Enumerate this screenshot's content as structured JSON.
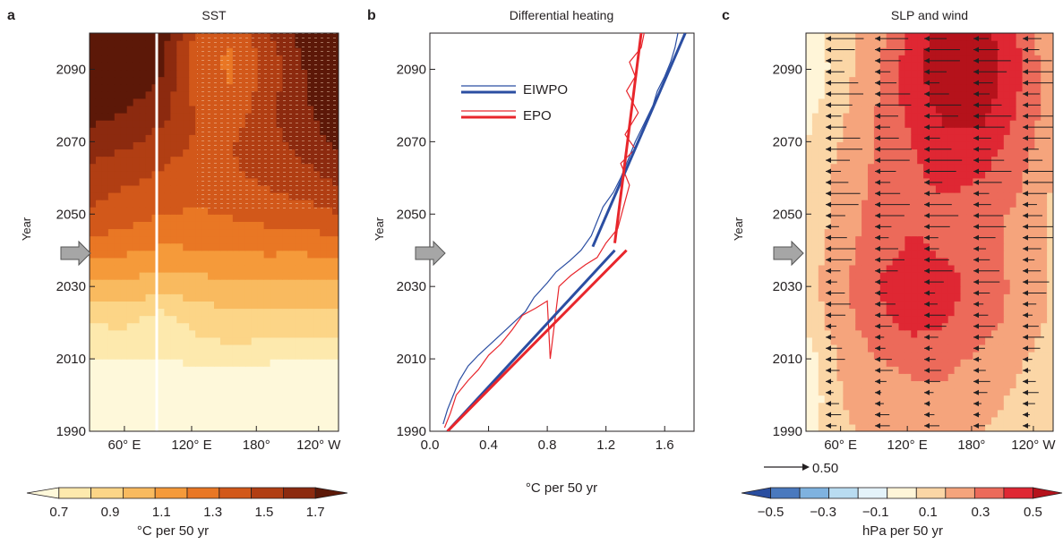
{
  "chart_data": [
    {
      "panel": "a",
      "type": "heatmap",
      "title": "SST",
      "ylabel": "Year",
      "y_ticks": [
        "1990",
        "2010",
        "2030",
        "2050",
        "2070",
        "2090"
      ],
      "ylim": [
        1990,
        2100
      ],
      "x_ticks": [
        "60° E",
        "120° E",
        "180°",
        "120° W"
      ],
      "colorbar": {
        "labels": [
          "0.7",
          "0.9",
          "1.1",
          "1.3",
          "1.5",
          "1.7"
        ],
        "label": "°C per 50 yr",
        "colors": [
          "#fef8da",
          "#fde9ad",
          "#fcd587",
          "#f9ba5f",
          "#f59a3a",
          "#e97724",
          "#d2581a",
          "#b13e13",
          "#8c2a0f",
          "#5c1808"
        ]
      },
      "rows": [
        {
          "year": 1990,
          "values": [
            0.7,
            0.7,
            0.7,
            0.7,
            0.7,
            0.7,
            0.7,
            0.7
          ]
        },
        {
          "year": 2005,
          "values": [
            0.72,
            0.72,
            0.74,
            0.74,
            0.72,
            0.72,
            0.72,
            0.72
          ]
        },
        {
          "year": 2012,
          "values": [
            0.82,
            0.85,
            0.82,
            0.86,
            0.88,
            0.86,
            0.85,
            0.86
          ]
        },
        {
          "year": 2020,
          "values": [
            0.9,
            0.92,
            0.83,
            0.93,
            0.95,
            0.95,
            0.95,
            0.94
          ]
        },
        {
          "year": 2028,
          "values": [
            1.02,
            1.04,
            1.0,
            1.03,
            1.04,
            1.05,
            1.04,
            1.04
          ]
        },
        {
          "year": 2036,
          "values": [
            1.18,
            1.16,
            1.12,
            1.14,
            1.14,
            1.16,
            1.15,
            1.17
          ]
        },
        {
          "year": 2044,
          "values": [
            1.3,
            1.28,
            1.24,
            1.24,
            1.25,
            1.27,
            1.27,
            1.3
          ]
        },
        {
          "year": 2052,
          "values": [
            1.4,
            1.36,
            1.32,
            1.3,
            1.33,
            1.36,
            1.38,
            1.42
          ]
        },
        {
          "year": 2060,
          "values": [
            1.46,
            1.42,
            1.38,
            1.35,
            1.38,
            1.42,
            1.46,
            1.52
          ]
        },
        {
          "year": 2068,
          "values": [
            1.54,
            1.5,
            1.44,
            1.38,
            1.4,
            1.46,
            1.52,
            1.6
          ]
        },
        {
          "year": 2076,
          "values": [
            1.62,
            1.58,
            1.52,
            1.4,
            1.36,
            1.48,
            1.56,
            1.68
          ]
        },
        {
          "year": 2084,
          "values": [
            1.68,
            1.64,
            1.58,
            1.36,
            1.3,
            1.46,
            1.58,
            1.74
          ]
        },
        {
          "year": 2092,
          "values": [
            1.74,
            1.7,
            1.62,
            1.34,
            1.28,
            1.44,
            1.6,
            1.78
          ]
        },
        {
          "year": 2100,
          "values": [
            1.8,
            1.72,
            1.66,
            1.38,
            1.32,
            1.48,
            1.64,
            1.82
          ]
        }
      ]
    },
    {
      "panel": "b",
      "type": "line",
      "title": "Differential heating",
      "ylabel": "Year",
      "xlabel": "°C per 50 yr",
      "x_ticks": [
        "0.0",
        "0.4",
        "0.8",
        "1.2",
        "1.6"
      ],
      "xlim": [
        0,
        1.8
      ],
      "ylim": [
        1990,
        2100
      ],
      "legend_position": "top-left",
      "series": [
        {
          "name": "EIWPO",
          "color": "#2b4ea2",
          "x": [
            0.09,
            0.12,
            0.16,
            0.2,
            0.26,
            0.33,
            0.41,
            0.49,
            0.57,
            0.65,
            0.71,
            0.8,
            0.86,
            0.95,
            1.03,
            1.1,
            1.14,
            1.18,
            1.25,
            1.3,
            1.35,
            1.4,
            1.46,
            1.52,
            1.55,
            1.6,
            1.64,
            1.67,
            1.69
          ],
          "y": [
            1992,
            1996,
            2000,
            2004,
            2008,
            2011,
            2014,
            2017,
            2020,
            2023,
            2027,
            2031,
            2034,
            2037,
            2040,
            2044,
            2048,
            2052,
            2056,
            2060,
            2065,
            2070,
            2075,
            2080,
            2084,
            2088,
            2092,
            2096,
            2100
          ]
        },
        {
          "name": "EPO",
          "color": "#e8262c",
          "x": [
            0.1,
            0.14,
            0.18,
            0.26,
            0.33,
            0.4,
            0.48,
            0.56,
            0.63,
            0.72,
            0.8,
            0.82,
            0.88,
            0.96,
            1.06,
            1.14,
            1.2,
            1.28,
            1.32,
            1.36,
            1.3,
            1.4,
            1.33,
            1.42,
            1.34,
            1.4,
            1.36,
            1.44,
            1.46
          ],
          "y": [
            1991,
            1995,
            2000,
            2004,
            2007,
            2011,
            2014,
            2018,
            2022,
            2024,
            2026,
            2010,
            2030,
            2033,
            2036,
            2038,
            2042,
            2046,
            2052,
            2058,
            2064,
            2068,
            2072,
            2078,
            2084,
            2088,
            2092,
            2096,
            2100
          ]
        }
      ],
      "fits": [
        {
          "series": "EIWPO",
          "segments": [
            [
              [
                0.12,
                1990
              ],
              [
                1.26,
                2040
              ]
            ],
            [
              [
                1.11,
                2041
              ],
              [
                1.74,
                2100
              ]
            ]
          ]
        },
        {
          "series": "EPO",
          "segments": [
            [
              [
                0.12,
                1990
              ],
              [
                1.34,
                2040
              ]
            ],
            [
              [
                1.26,
                2042
              ],
              [
                1.44,
                2100
              ]
            ]
          ]
        }
      ]
    },
    {
      "panel": "c",
      "type": "heatmap",
      "title": "SLP and wind",
      "ylabel": "Year",
      "y_ticks": [
        "1990",
        "2010",
        "2030",
        "2050",
        "2070",
        "2090"
      ],
      "ylim": [
        1990,
        2100
      ],
      "x_ticks": [
        "60° E",
        "120° E",
        "180°",
        "120° W"
      ],
      "vector_key": "0.50",
      "colorbar": {
        "labels": [
          "−0.5",
          "−0.3",
          "−0.1",
          "0.1",
          "0.3",
          "0.5"
        ],
        "label": "hPa per 50 yr",
        "colors": [
          "#2a4ea0",
          "#4a79be",
          "#7fb2df",
          "#b9dcf1",
          "#e4f3fa",
          "#fff5d8",
          "#fbd6a6",
          "#f5a47c",
          "#ec6a5a",
          "#df2733",
          "#b5121b"
        ]
      },
      "rows": [
        {
          "year": 1990,
          "values": [
            -0.05,
            0.08,
            0.12,
            0.14,
            0.12,
            0.1,
            0.06,
            0.02
          ]
        },
        {
          "year": 2000,
          "values": [
            -0.08,
            0.1,
            0.16,
            0.18,
            0.18,
            0.14,
            0.08,
            0.02
          ]
        },
        {
          "year": 2010,
          "values": [
            -0.06,
            0.12,
            0.2,
            0.22,
            0.22,
            0.18,
            0.12,
            0.04
          ]
        },
        {
          "year": 2020,
          "values": [
            0.02,
            0.16,
            0.26,
            0.34,
            0.3,
            0.24,
            0.16,
            0.08
          ]
        },
        {
          "year": 2030,
          "values": [
            0.06,
            0.18,
            0.3,
            0.38,
            0.34,
            0.26,
            0.18,
            0.08
          ]
        },
        {
          "year": 2040,
          "values": [
            0.04,
            0.16,
            0.26,
            0.32,
            0.28,
            0.24,
            0.16,
            0.08
          ]
        },
        {
          "year": 2050,
          "values": [
            0.02,
            0.14,
            0.24,
            0.28,
            0.28,
            0.24,
            0.18,
            0.08
          ]
        },
        {
          "year": 2060,
          "values": [
            0.02,
            0.14,
            0.22,
            0.28,
            0.32,
            0.3,
            0.22,
            0.1
          ]
        },
        {
          "year": 2070,
          "values": [
            0.0,
            0.1,
            0.2,
            0.3,
            0.38,
            0.36,
            0.26,
            0.12
          ]
        },
        {
          "year": 2080,
          "values": [
            -0.04,
            0.08,
            0.2,
            0.34,
            0.44,
            0.44,
            0.3,
            0.14
          ]
        },
        {
          "year": 2090,
          "values": [
            -0.1,
            0.06,
            0.18,
            0.36,
            0.5,
            0.48,
            0.32,
            0.12
          ]
        },
        {
          "year": 2100,
          "values": [
            -0.06,
            0.06,
            0.16,
            0.34,
            0.46,
            0.44,
            0.3,
            0.1
          ]
        }
      ]
    }
  ]
}
